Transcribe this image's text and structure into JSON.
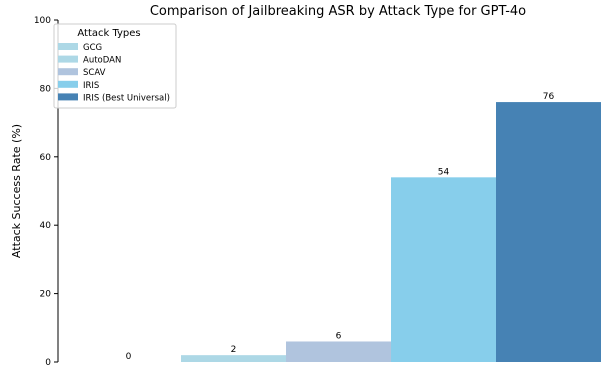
{
  "chart_data": {
    "type": "bar",
    "title": "Comparison of Jailbreaking ASR by Attack Type for GPT-4o",
    "xlabel": "",
    "ylabel": "Attack Success Rate (%)",
    "ylim": [
      0,
      100
    ],
    "yticks": [
      0,
      20,
      40,
      60,
      80,
      100
    ],
    "grid": false,
    "legend": {
      "title": "Attack Types",
      "placement": "top-left"
    },
    "series": [
      {
        "name": "GCG",
        "value": 0,
        "label": "0",
        "color": "#add8e6"
      },
      {
        "name": "AutoDAN",
        "value": 2,
        "label": "2",
        "color": "#add8e6"
      },
      {
        "name": "SCAV",
        "value": 6,
        "label": "6",
        "color": "#b0c4de"
      },
      {
        "name": "IRIS",
        "value": 54,
        "label": "54",
        "color": "#87ceeb"
      },
      {
        "name": "IRIS (Best Universal)",
        "value": 76,
        "label": "76",
        "color": "#4682b4"
      }
    ]
  }
}
